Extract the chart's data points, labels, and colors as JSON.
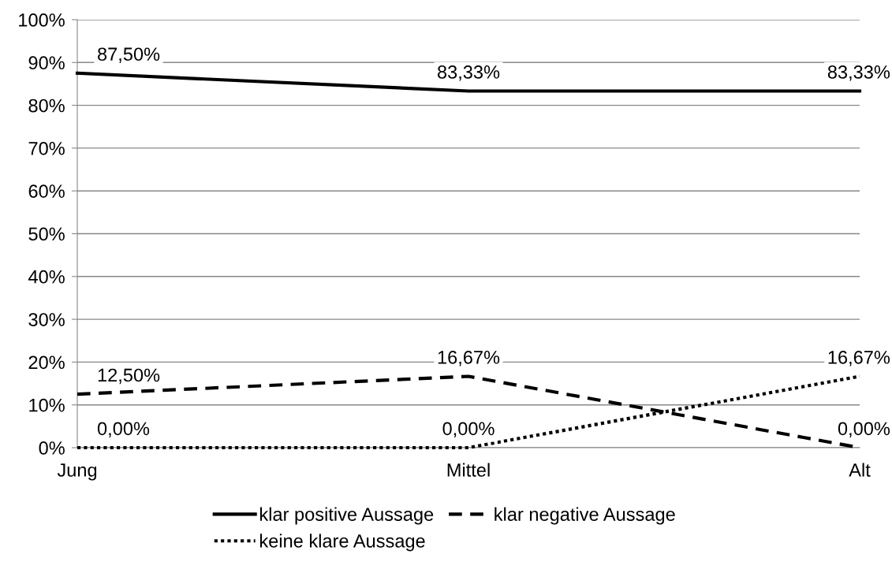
{
  "chart_data": {
    "type": "line",
    "categories": [
      "Jung",
      "Mittel",
      "Alt"
    ],
    "series": [
      {
        "name": "klar positive Aussage",
        "color": "#000000",
        "line_style": "solid",
        "values": [
          87.5,
          83.33,
          83.33
        ],
        "value_labels": [
          "87,50%",
          "83,33%",
          "83,33%"
        ]
      },
      {
        "name": "klar negative Aussage",
        "color": "#000000",
        "line_style": "dashed",
        "values": [
          12.5,
          16.67,
          0
        ],
        "value_labels": [
          "12,50%",
          "16,67%",
          "0,00%"
        ]
      },
      {
        "name": "keine klare Aussage",
        "color": "#000000",
        "line_style": "dotted",
        "values": [
          0,
          0,
          16.67
        ],
        "value_labels": [
          "0,00%",
          "0,00%",
          "16,67%"
        ]
      }
    ],
    "ylim": [
      0,
      100
    ],
    "yticks": [
      {
        "value": 0,
        "label": "0%"
      },
      {
        "value": 10,
        "label": "10%"
      },
      {
        "value": 20,
        "label": "20%"
      },
      {
        "value": 30,
        "label": "30%"
      },
      {
        "value": 40,
        "label": "40%"
      },
      {
        "value": 50,
        "label": "50%"
      },
      {
        "value": 60,
        "label": "60%"
      },
      {
        "value": 70,
        "label": "70%"
      },
      {
        "value": 80,
        "label": "80%"
      },
      {
        "value": 90,
        "label": "90%"
      },
      {
        "value": 100,
        "label": "100%"
      }
    ],
    "grid": "y",
    "legend": "bottom",
    "marker": "none"
  }
}
